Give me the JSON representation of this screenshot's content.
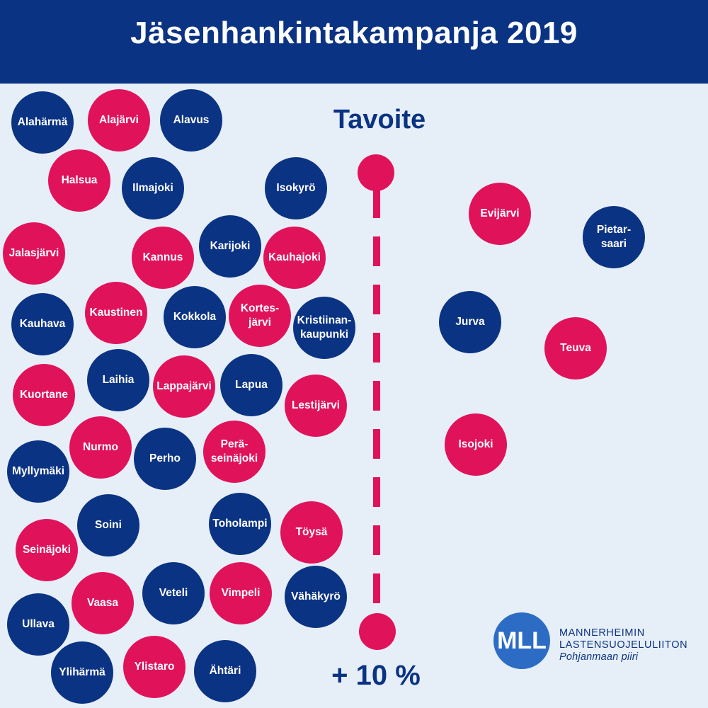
{
  "title": "Jäsenhankintakampanja 2019",
  "goal": {
    "label": "Tavoite",
    "value": "+ 10 %"
  },
  "colors": {
    "header": "#0b3383",
    "navy": "#0b3383",
    "pink": "#e0135a",
    "background": "#e6eef8",
    "logo": "#2c6cc5"
  },
  "left_group": [
    {
      "name": "Alahärmä",
      "color": "navy"
    },
    {
      "name": "Alajärvi",
      "color": "pink"
    },
    {
      "name": "Alavus",
      "color": "navy"
    },
    {
      "name": "Halsua",
      "color": "pink"
    },
    {
      "name": "Ilmajoki",
      "color": "navy"
    },
    {
      "name": "Isokyrö",
      "color": "navy"
    },
    {
      "name": "Jalasjärvi",
      "color": "pink"
    },
    {
      "name": "Kannus",
      "color": "pink"
    },
    {
      "name": "Karijoki",
      "color": "navy"
    },
    {
      "name": "Kauhajoki",
      "color": "pink"
    },
    {
      "name": "Kauhava",
      "color": "navy"
    },
    {
      "name": "Kaustinen",
      "color": "pink"
    },
    {
      "name": "Kokkola",
      "color": "navy"
    },
    {
      "name": "Kortes-\njärvi",
      "color": "pink"
    },
    {
      "name": "Kristiinan-\nkaupunki",
      "color": "navy"
    },
    {
      "name": "Kuortane",
      "color": "pink"
    },
    {
      "name": "Laihia",
      "color": "navy"
    },
    {
      "name": "Lappajärvi",
      "color": "pink"
    },
    {
      "name": "Lapua",
      "color": "navy"
    },
    {
      "name": "Lestijärvi",
      "color": "pink"
    },
    {
      "name": "Myllymäki",
      "color": "navy"
    },
    {
      "name": "Nurmo",
      "color": "pink"
    },
    {
      "name": "Perho",
      "color": "navy"
    },
    {
      "name": "Perä-\nseinäjoki",
      "color": "pink"
    },
    {
      "name": "Soini",
      "color": "navy"
    },
    {
      "name": "Toholampi",
      "color": "navy"
    },
    {
      "name": "Töysä",
      "color": "pink"
    },
    {
      "name": "Seinäjoki",
      "color": "pink"
    },
    {
      "name": "Vaasa",
      "color": "pink"
    },
    {
      "name": "Veteli",
      "color": "navy"
    },
    {
      "name": "Vimpeli",
      "color": "pink"
    },
    {
      "name": "Vähäkyrö",
      "color": "navy"
    },
    {
      "name": "Ullava",
      "color": "navy"
    },
    {
      "name": "Ylihärmä",
      "color": "navy"
    },
    {
      "name": "Ylistaro",
      "color": "pink"
    },
    {
      "name": "Ähtäri",
      "color": "navy"
    }
  ],
  "right_group": [
    {
      "name": "Evijärvi",
      "color": "pink"
    },
    {
      "name": "Pietar-\nsaari",
      "color": "navy"
    },
    {
      "name": "Jurva",
      "color": "navy"
    },
    {
      "name": "Teuva",
      "color": "pink"
    },
    {
      "name": "Isojoki",
      "color": "pink"
    }
  ],
  "logo": {
    "mark": "MLL",
    "line1": "MANNERHEIMIN",
    "line2": "LASTENSUOJELULIITON",
    "line3": "Pohjanmaan piiri"
  }
}
